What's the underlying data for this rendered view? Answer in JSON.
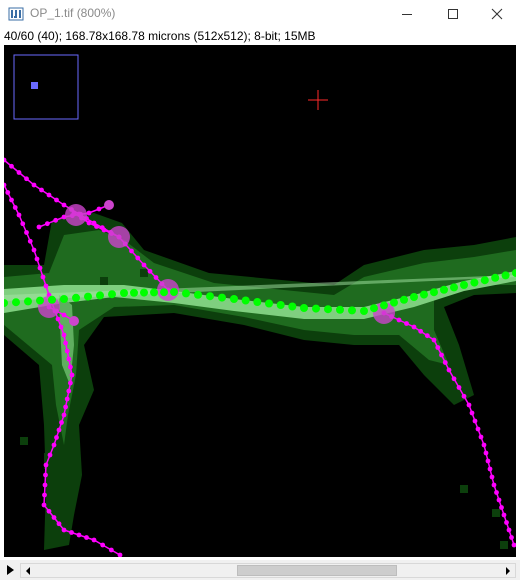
{
  "window": {
    "title": "OP_1.tif (800%)",
    "icon": "imagej-icon",
    "buttons": [
      "minimize-icon",
      "maximize-icon",
      "close-icon"
    ]
  },
  "info": {
    "text": "40/60 (40); 168.78x168.78 microns (512x512); 8-bit; 15MB"
  },
  "stack": {
    "slice": 40,
    "slice_count": 60,
    "slider_fraction": 0.66
  },
  "colors": {
    "trace": "#ff00ff",
    "trace_node": "#cc44cc",
    "path_point": "#00ff00",
    "crosshair": "#ff2a2a",
    "navigator": "#6a6aff",
    "background": "#000000"
  },
  "overlay": {
    "navigator_label": "navigator",
    "crosshair": "cursor-crosshair"
  }
}
